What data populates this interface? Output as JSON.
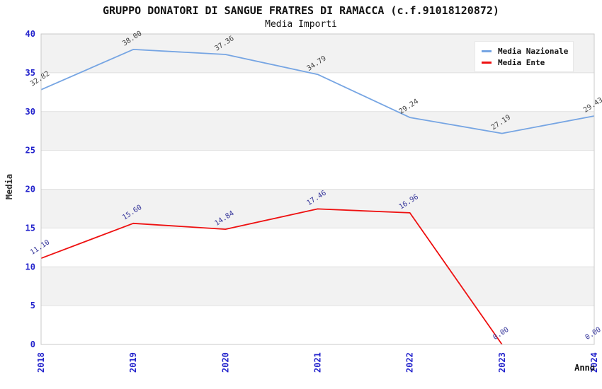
{
  "header": {
    "title": "GRUPPO DONATORI DI SANGUE FRATRES DI RAMACCA (c.f.91018120872)",
    "subtitle": "Media Importi"
  },
  "legend": {
    "position": "top-right",
    "items": [
      {
        "label": "Media Nazionale",
        "color": "#76a5e3"
      },
      {
        "label": "Media Ente",
        "color": "#ee1111"
      }
    ]
  },
  "colors": {
    "tick_label": "#2222cc",
    "band_gray": "#f2f2f2",
    "gridline": "#e0e0e0",
    "plot_border": "#c9c9c9",
    "background": "#ffffff"
  },
  "chart_data": {
    "type": "line",
    "title": "GRUPPO DONATORI DI SANGUE FRATRES DI RAMACCA (c.f.91018120872)",
    "subtitle": "Media Importi",
    "xlabel": "Anno",
    "ylabel": "Media",
    "x": [
      2018,
      2019,
      2020,
      2021,
      2022,
      2023,
      2024
    ],
    "ylim": [
      0,
      40
    ],
    "yticks": [
      0,
      5,
      10,
      15,
      20,
      25,
      30,
      35,
      40
    ],
    "grid": "alternating horizontal gray/white bands with light gridlines every 5",
    "legend_position": "top-right",
    "point_labels": "each point labeled with value to 2 decimals, rotated ~-33deg",
    "series": [
      {
        "name": "Media Nazionale",
        "color": "#76a5e3",
        "label_color": "#404040",
        "values": [
          32.82,
          38.0,
          37.36,
          34.79,
          29.24,
          27.19,
          29.43
        ]
      },
      {
        "name": "Media Ente",
        "color": "#ee1111",
        "label_color": "#333399",
        "values": [
          11.1,
          15.6,
          14.84,
          17.46,
          16.96,
          0.0,
          0.0
        ]
      }
    ]
  }
}
